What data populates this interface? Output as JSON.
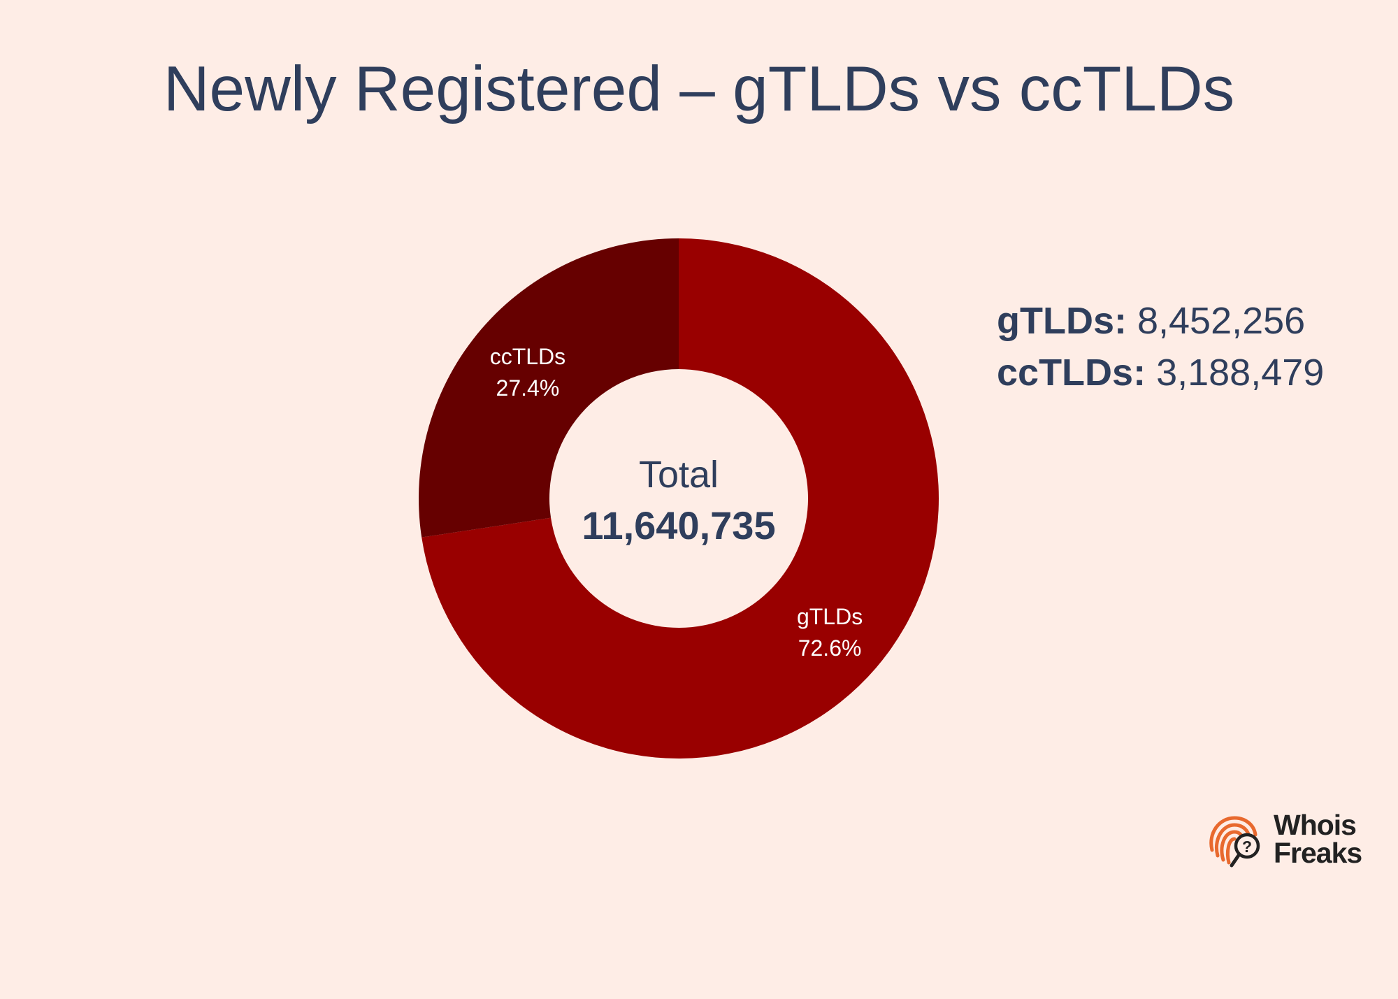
{
  "chart_data": {
    "type": "pie",
    "title": "Newly Registered – gTLDs vs ccTLDs",
    "hole": true,
    "slices": [
      {
        "name": "gTLDs",
        "value": 8452256,
        "percent_label": "72.6%",
        "color": "#990000"
      },
      {
        "name": "ccTLDs",
        "value": 3188479,
        "percent_label": "27.4%",
        "color": "#660000"
      }
    ],
    "center": {
      "label": "Total",
      "value": "11,640,735"
    },
    "legend_placement": "right",
    "legend": [
      {
        "key": "gTLDs:",
        "value": "8,452,256"
      },
      {
        "key": "ccTLDs:",
        "value": "3,188,479"
      }
    ]
  },
  "colors": {
    "background": "#feede6",
    "text": "#2f3e5c",
    "logo_orange": "#e8692e"
  },
  "logo": {
    "icon": "fingerprint-magnifier-icon",
    "line1": "Whois",
    "line2": "Freaks"
  }
}
